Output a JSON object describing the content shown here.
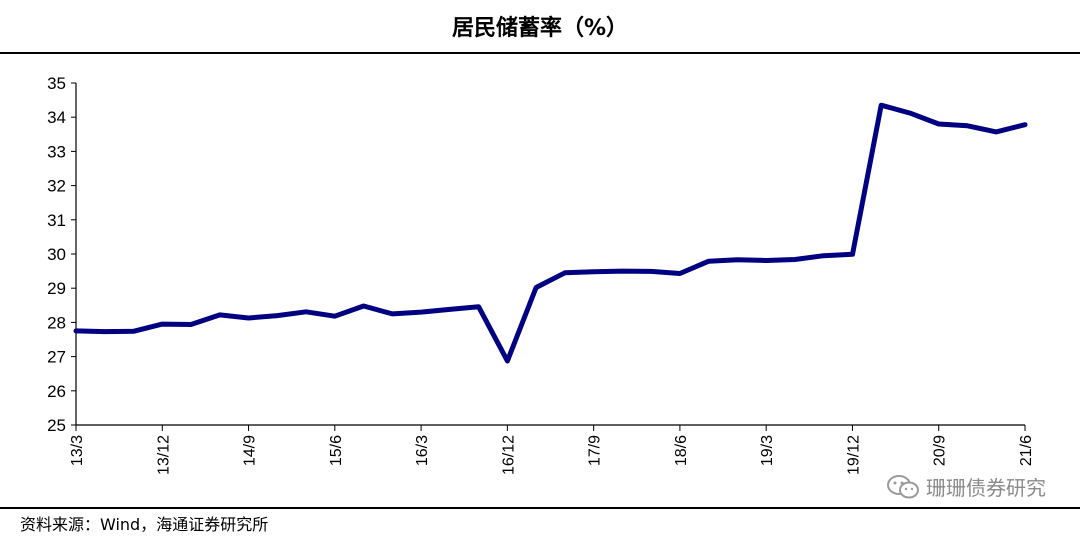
{
  "header": {
    "title": "居民储蓄率（%）"
  },
  "footer": {
    "source": "资料来源：Wind，海通证券研究所",
    "watermark": "珊珊债券研究",
    "watermark_icon": "wechat-icon"
  },
  "chart_data": {
    "type": "line",
    "title": "居民储蓄率（%）",
    "xlabel": "",
    "ylabel": "",
    "ylim": [
      25,
      35
    ],
    "yticks": [
      25,
      26,
      27,
      28,
      29,
      30,
      31,
      32,
      33,
      34,
      35
    ],
    "grid": false,
    "legend": "none",
    "line_color": "#000080",
    "x": [
      "13/3",
      "13/6",
      "13/9",
      "13/12",
      "14/3",
      "14/6",
      "14/9",
      "14/12",
      "15/3",
      "15/6",
      "15/9",
      "15/12",
      "16/3",
      "16/6",
      "16/9",
      "16/12",
      "17/3",
      "17/6",
      "17/9",
      "17/12",
      "18/3",
      "18/6",
      "18/9",
      "18/12",
      "19/3",
      "19/6",
      "19/9",
      "19/12",
      "20/3",
      "20/6",
      "20/9",
      "20/12",
      "21/3",
      "21/6"
    ],
    "x_tick_labels": [
      "13/3",
      "13/12",
      "14/9",
      "15/6",
      "16/3",
      "16/12",
      "17/9",
      "18/6",
      "19/3",
      "19/12",
      "20/9",
      "21/6"
    ],
    "series": [
      {
        "values": [
          27.75,
          27.73,
          27.74,
          27.95,
          27.94,
          28.22,
          28.13,
          28.2,
          28.31,
          28.18,
          28.48,
          28.25,
          28.3,
          28.38,
          28.46,
          26.87,
          29.02,
          29.45,
          29.48,
          29.5,
          29.49,
          29.43,
          29.79,
          29.83,
          29.81,
          29.84,
          29.95,
          29.99,
          34.35,
          34.12,
          33.8,
          33.75,
          33.57,
          33.78
        ]
      }
    ]
  }
}
